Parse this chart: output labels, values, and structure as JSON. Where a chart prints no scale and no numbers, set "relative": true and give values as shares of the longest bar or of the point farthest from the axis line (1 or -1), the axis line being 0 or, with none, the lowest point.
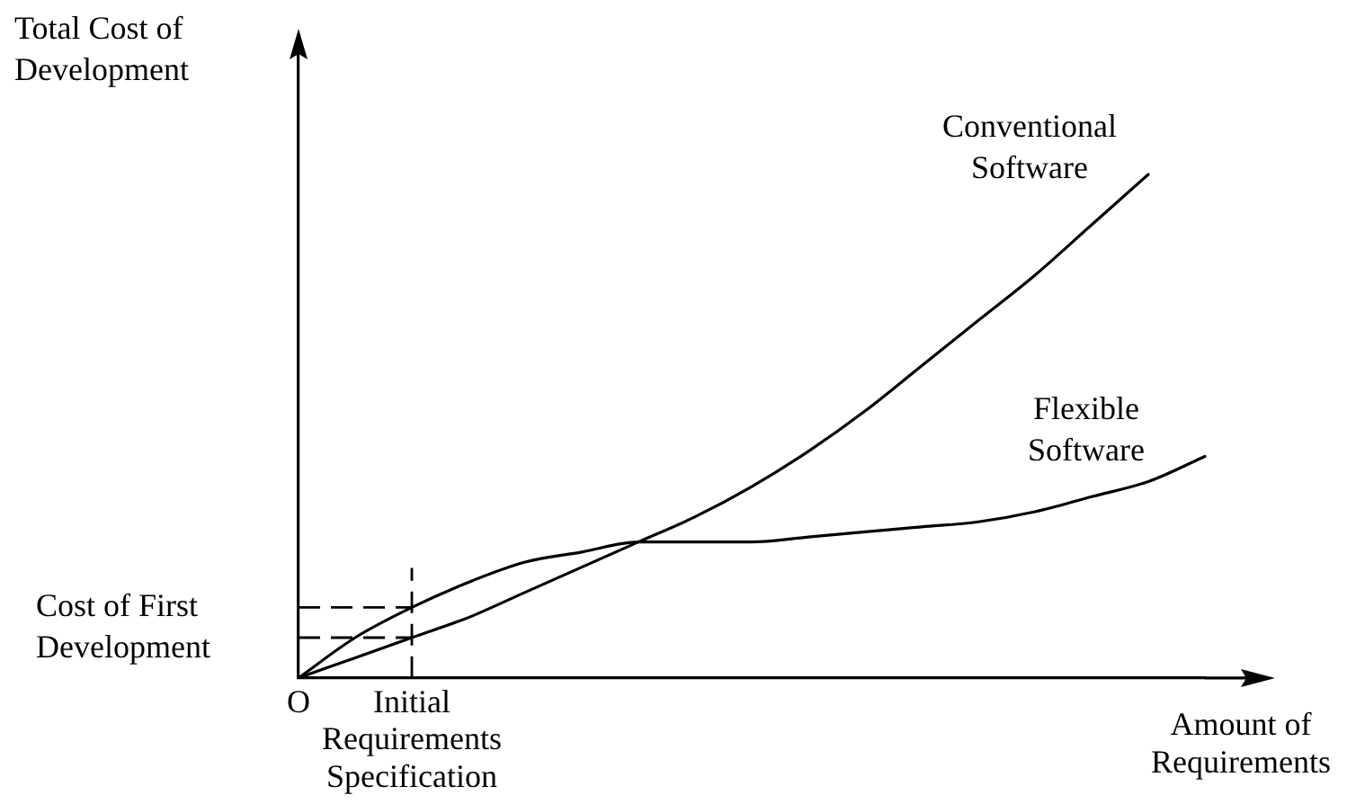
{
  "chart_data": {
    "type": "line",
    "ylabel": "Total Cost of Development",
    "xlabel": "Amount of Requirements",
    "relative": true,
    "categories": [
      "O",
      null,
      "Initial Requirements Specification",
      null,
      null,
      null,
      null,
      null,
      null,
      null,
      null,
      null,
      null,
      null,
      null,
      null,
      null
    ],
    "series": [
      {
        "name": "Conventional Software",
        "color": "#000000",
        "values": [
          0,
          0.04,
          0.08,
          0.12,
          0.17,
          0.22,
          0.27,
          0.32,
          0.38,
          0.45,
          0.53,
          0.62,
          0.71,
          0.8,
          0.9,
          1,
          null
        ]
      },
      {
        "name": "Flexible Software",
        "color": "#000000",
        "values": [
          0,
          0.08,
          0.14,
          0.19,
          0.23,
          0.25,
          0.27,
          0.27,
          0.27,
          0.28,
          0.29,
          0.3,
          0.31,
          0.33,
          0.36,
          0.39,
          0.44
        ]
      }
    ],
    "ref_lines": [
      {
        "axis": "x",
        "value": "Initial Requirements Specification",
        "line_style": "dashed",
        "color": "#000000"
      },
      {
        "axis": "y",
        "value": 0.14,
        "label": "Cost of First Development",
        "line_style": "dashed",
        "color": "#000000"
      },
      {
        "axis": "y",
        "value": 0.08,
        "line_style": "dashed",
        "color": "#000000"
      }
    ],
    "grid": false,
    "legend": false,
    "marker": "none",
    "line_style": "solid"
  }
}
